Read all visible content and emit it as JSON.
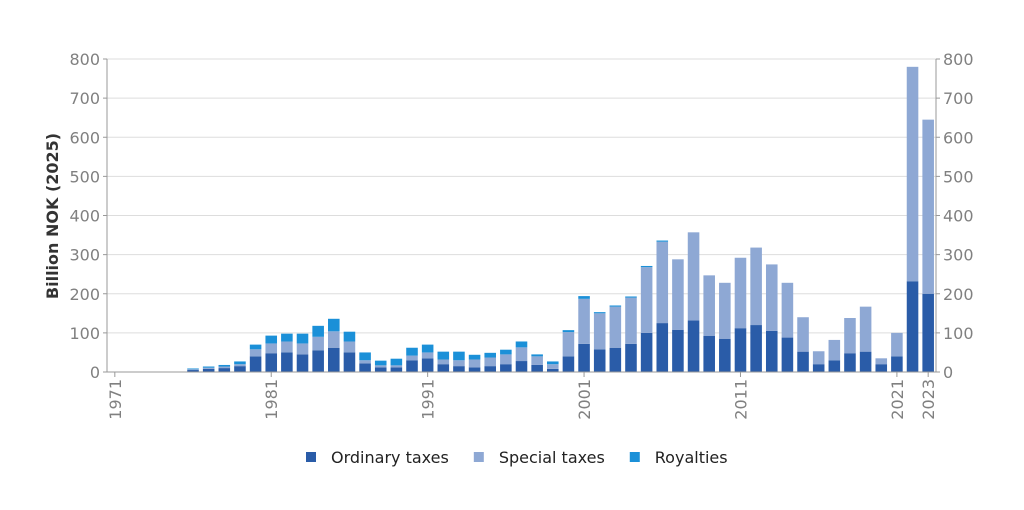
{
  "chart_data": {
    "type": "bar",
    "stacked": true,
    "ylabel": "Billion NOK (2025)",
    "xlabel": "",
    "ylim": [
      0,
      800
    ],
    "yticks": [
      0,
      100,
      200,
      300,
      400,
      500,
      600,
      700,
      800
    ],
    "right_axis": true,
    "grid": "horizontal",
    "legend_position": "bottom",
    "x_tick_labels": [
      "1971",
      "1981",
      "1991",
      "2001",
      "2011",
      "2021",
      "2023"
    ],
    "categories": [
      "1971",
      "1972",
      "1973",
      "1974",
      "1975",
      "1976",
      "1977",
      "1978",
      "1979",
      "1980",
      "1981",
      "1982",
      "1983",
      "1984",
      "1985",
      "1986",
      "1987",
      "1988",
      "1989",
      "1990",
      "1991",
      "1992",
      "1993",
      "1994",
      "1995",
      "1996",
      "1997",
      "1998",
      "1999",
      "2000",
      "2001",
      "2002",
      "2003",
      "2004",
      "2005",
      "2006",
      "2007",
      "2008",
      "2009",
      "2010",
      "2011",
      "2012",
      "2013",
      "2014",
      "2015",
      "2016",
      "2017",
      "2018",
      "2019",
      "2020",
      "2021",
      "2022",
      "2023"
    ],
    "series": [
      {
        "name": "Ordinary taxes",
        "color": "#2a5ca8",
        "values": [
          0,
          0,
          0,
          0,
          0,
          5,
          8,
          10,
          15,
          40,
          48,
          50,
          45,
          55,
          62,
          50,
          22,
          12,
          12,
          30,
          35,
          20,
          15,
          12,
          15,
          20,
          28,
          18,
          8,
          40,
          72,
          58,
          62,
          72,
          100,
          125,
          108,
          132,
          92,
          85,
          112,
          120,
          105,
          88,
          52,
          20,
          30,
          48,
          52,
          20,
          40,
          232,
          200
        ]
      },
      {
        "name": "Special taxes",
        "color": "#8ea8d4",
        "values": [
          0,
          0,
          0,
          0,
          0,
          2,
          3,
          4,
          5,
          18,
          25,
          28,
          28,
          35,
          42,
          28,
          8,
          5,
          5,
          12,
          15,
          12,
          15,
          20,
          22,
          25,
          35,
          22,
          12,
          62,
          115,
          92,
          105,
          118,
          168,
          208,
          180,
          225,
          155,
          143,
          180,
          198,
          170,
          140,
          88,
          33,
          52,
          90,
          115,
          15,
          60,
          548,
          445
        ]
      },
      {
        "name": "Royalties",
        "color": "#1b90d8",
        "values": [
          0,
          0,
          0,
          0,
          0,
          2,
          3,
          4,
          7,
          12,
          20,
          20,
          25,
          28,
          32,
          25,
          20,
          12,
          17,
          20,
          20,
          20,
          22,
          12,
          12,
          12,
          15,
          5,
          7,
          5,
          7,
          3,
          3,
          3,
          3,
          3,
          0,
          0,
          0,
          0,
          0,
          0,
          0,
          0,
          0,
          0,
          0,
          0,
          0,
          0,
          0,
          0,
          0
        ]
      }
    ]
  }
}
